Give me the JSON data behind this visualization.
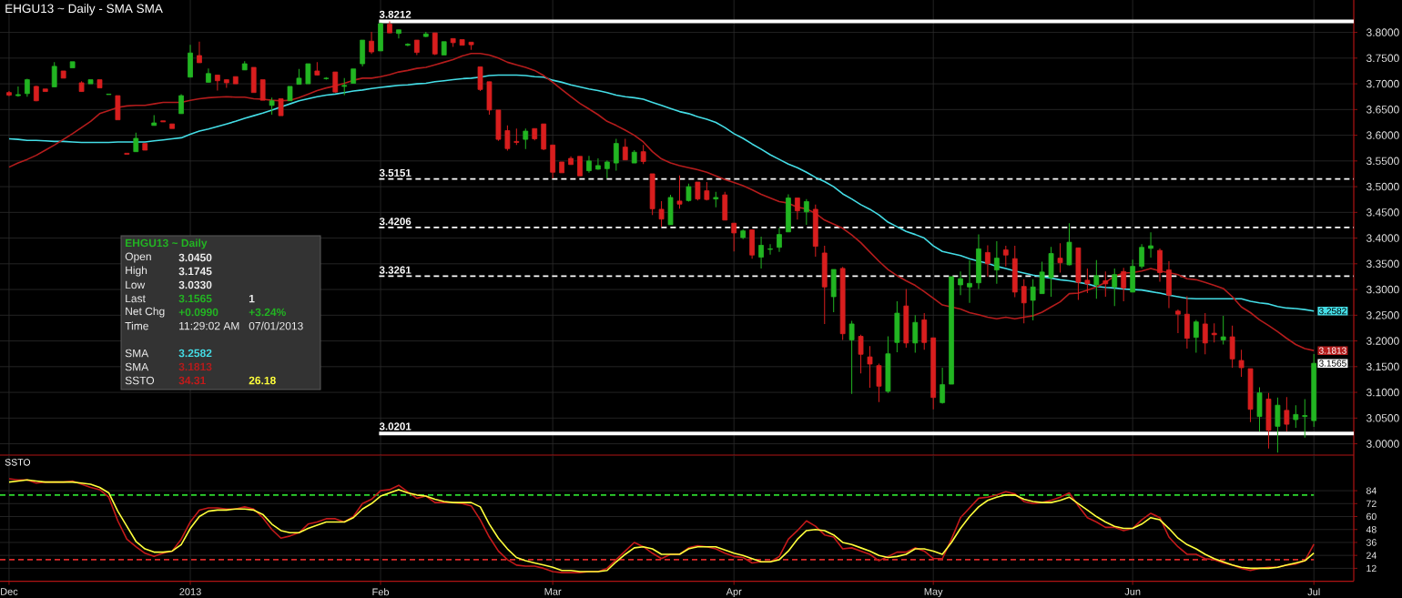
{
  "chart_data": [
    {
      "type": "candlestick",
      "title": "EHGU13 ~ Daily - SMA SMA",
      "categories": [
        null,
        null,
        null,
        null,
        null,
        null,
        null,
        null,
        null,
        null,
        null,
        null,
        null,
        null,
        null,
        null,
        null,
        null,
        null,
        null,
        null,
        null,
        null,
        null,
        null,
        null,
        null,
        null,
        null,
        null,
        null,
        null,
        null,
        null,
        null,
        null,
        null,
        null,
        null,
        null,
        null,
        null,
        null,
        null,
        null,
        null,
        null,
        null,
        null,
        null,
        null,
        null,
        null,
        null,
        null,
        null,
        null,
        null,
        null,
        null,
        null,
        null,
        null,
        null,
        null,
        null,
        null,
        null,
        null,
        null,
        null,
        null,
        null,
        null,
        null,
        null,
        null,
        null,
        null,
        null,
        null,
        null,
        null,
        null,
        null,
        null,
        null,
        null,
        null,
        null,
        null,
        null,
        null,
        null,
        null,
        null,
        null,
        null,
        null,
        null,
        null,
        null,
        null,
        null,
        null,
        null,
        null,
        null,
        null,
        null,
        null,
        null,
        null,
        null,
        null,
        null,
        null,
        null,
        null,
        null,
        null,
        null,
        null,
        null,
        null,
        null,
        null,
        null,
        null,
        null,
        null,
        null,
        null,
        null,
        null,
        null,
        null,
        null,
        null,
        null,
        null,
        null,
        null,
        null,
        null
      ],
      "ohlc": [
        [
          3.683,
          3.686,
          3.676,
          3.678
        ],
        [
          3.677,
          3.695,
          3.675,
          3.679
        ],
        [
          3.681,
          3.71,
          3.675,
          3.708
        ],
        [
          3.695,
          3.696,
          3.666,
          3.667
        ],
        [
          3.69,
          3.69,
          3.685,
          3.685
        ],
        [
          3.694,
          3.742,
          3.694,
          3.734
        ],
        [
          3.725,
          3.725,
          3.711,
          3.711
        ],
        [
          3.731,
          3.743,
          3.731,
          3.743
        ],
        [
          3.702,
          3.705,
          3.685,
          3.685
        ],
        [
          3.7,
          3.708,
          3.7,
          3.708
        ],
        [
          3.708,
          3.708,
          3.692,
          3.692
        ],
        [
          3.679,
          3.68,
          3.679,
          3.68
        ],
        [
          3.677,
          3.677,
          3.63,
          3.63
        ],
        [
          3.565,
          3.565,
          3.563,
          3.563
        ],
        [
          3.568,
          3.605,
          3.568,
          3.594
        ],
        [
          3.584,
          3.584,
          3.571,
          3.571
        ],
        [
          3.619,
          3.639,
          3.619,
          3.624
        ],
        [
          3.628,
          3.628,
          3.626,
          3.626
        ],
        [
          3.622,
          3.622,
          3.613,
          3.613
        ],
        [
          3.642,
          3.68,
          3.642,
          3.677
        ],
        [
          3.713,
          3.776,
          3.713,
          3.76
        ],
        [
          3.755,
          3.782,
          3.741,
          3.741
        ],
        [
          3.703,
          3.73,
          3.703,
          3.72
        ],
        [
          3.717,
          3.717,
          3.687,
          3.706
        ],
        [
          3.708,
          3.708,
          3.692,
          3.702
        ],
        [
          3.714,
          3.714,
          3.7,
          3.7
        ],
        [
          3.727,
          3.744,
          3.727,
          3.739
        ],
        [
          3.732,
          3.732,
          3.683,
          3.683
        ],
        [
          3.708,
          3.708,
          3.668,
          3.668
        ],
        [
          3.658,
          3.673,
          3.64,
          3.667
        ],
        [
          3.671,
          3.671,
          3.638,
          3.638
        ],
        [
          3.667,
          3.695,
          3.667,
          3.695
        ],
        [
          3.699,
          3.729,
          3.699,
          3.711
        ],
        [
          3.7,
          3.739,
          3.7,
          3.739
        ],
        [
          3.725,
          3.742,
          3.716,
          3.717
        ],
        [
          3.71,
          3.713,
          3.708,
          3.711
        ],
        [
          3.723,
          3.723,
          3.683,
          3.684
        ],
        [
          3.695,
          3.711,
          3.678,
          3.697
        ],
        [
          3.701,
          3.729,
          3.701,
          3.729
        ],
        [
          3.739,
          3.785,
          3.734,
          3.785
        ],
        [
          3.783,
          3.801,
          3.758,
          3.762
        ],
        [
          3.764,
          3.819,
          3.764,
          3.817
        ],
        [
          3.816,
          3.8212,
          3.799,
          3.799
        ],
        [
          3.798,
          3.805,
          3.788,
          3.805
        ],
        [
          3.775,
          3.779,
          3.773,
          3.777
        ],
        [
          3.785,
          3.785,
          3.756,
          3.761
        ],
        [
          3.792,
          3.801,
          3.791,
          3.797
        ],
        [
          3.799,
          3.799,
          3.756,
          3.758
        ],
        [
          3.756,
          3.782,
          3.756,
          3.782
        ],
        [
          3.788,
          3.788,
          3.772,
          3.78
        ],
        [
          3.786,
          3.786,
          3.775,
          3.775
        ],
        [
          3.781,
          3.781,
          3.766,
          3.776
        ],
        [
          3.733,
          3.733,
          3.686,
          3.689
        ],
        [
          3.704,
          3.704,
          3.64,
          3.649
        ],
        [
          3.649,
          3.649,
          3.589,
          3.592
        ],
        [
          3.609,
          3.619,
          3.57,
          3.574
        ],
        [
          3.588,
          3.613,
          3.581,
          3.586
        ],
        [
          3.592,
          3.613,
          3.573,
          3.608
        ],
        [
          3.613,
          3.613,
          3.59,
          3.593
        ],
        [
          3.622,
          3.622,
          3.571,
          3.573
        ],
        [
          3.581,
          3.581,
          3.516,
          3.528
        ],
        [
          3.548,
          3.548,
          3.527,
          3.527
        ],
        [
          3.555,
          3.559,
          3.543,
          3.543
        ],
        [
          3.559,
          3.559,
          3.521,
          3.521
        ],
        [
          3.531,
          3.56,
          3.527,
          3.55
        ],
        [
          3.534,
          3.555,
          3.533,
          3.541
        ],
        [
          3.535,
          3.551,
          3.516,
          3.548
        ],
        [
          3.546,
          3.593,
          3.531,
          3.584
        ],
        [
          3.577,
          3.593,
          3.552,
          3.552
        ],
        [
          3.546,
          3.571,
          3.546,
          3.567
        ],
        [
          3.568,
          3.581,
          3.544,
          3.549
        ],
        [
          3.525,
          3.525,
          3.445,
          3.457
        ],
        [
          3.456,
          3.472,
          3.422,
          3.437
        ],
        [
          3.426,
          3.484,
          3.426,
          3.479
        ],
        [
          3.472,
          3.522,
          3.457,
          3.466
        ],
        [
          3.473,
          3.506,
          3.471,
          3.5
        ],
        [
          3.509,
          3.509,
          3.473,
          3.476
        ],
        [
          3.492,
          3.509,
          3.473,
          3.475
        ],
        [
          3.476,
          3.49,
          3.46,
          3.479
        ],
        [
          3.484,
          3.49,
          3.435,
          3.435
        ],
        [
          3.429,
          3.429,
          3.374,
          3.41
        ],
        [
          3.401,
          3.417,
          3.398,
          3.414
        ],
        [
          3.416,
          3.417,
          3.36,
          3.367
        ],
        [
          3.363,
          3.403,
          3.341,
          3.386
        ],
        [
          3.378,
          3.388,
          3.368,
          3.379
        ],
        [
          3.382,
          3.42,
          3.373,
          3.407
        ],
        [
          3.412,
          3.485,
          3.412,
          3.478
        ],
        [
          3.478,
          3.478,
          3.436,
          3.453
        ],
        [
          3.451,
          3.476,
          3.426,
          3.471
        ],
        [
          3.456,
          3.465,
          3.364,
          3.384
        ],
        [
          3.371,
          3.385,
          3.233,
          3.305
        ],
        [
          3.286,
          3.339,
          3.256,
          3.339
        ],
        [
          3.341,
          3.344,
          3.202,
          3.214
        ],
        [
          3.202,
          3.239,
          3.097,
          3.233
        ],
        [
          3.209,
          3.212,
          3.137,
          3.174
        ],
        [
          3.169,
          3.19,
          3.109,
          3.155
        ],
        [
          3.152,
          3.156,
          3.081,
          3.112
        ],
        [
          3.102,
          3.209,
          3.099,
          3.175
        ],
        [
          3.197,
          3.277,
          3.178,
          3.254
        ],
        [
          3.268,
          3.301,
          3.187,
          3.196
        ],
        [
          3.196,
          3.25,
          3.177,
          3.236
        ],
        [
          3.241,
          3.254,
          3.183,
          3.197
        ],
        [
          3.206,
          3.206,
          3.067,
          3.09
        ],
        [
          3.08,
          3.148,
          3.078,
          3.115
        ],
        [
          3.116,
          3.325,
          3.116,
          3.325
        ],
        [
          3.309,
          3.335,
          3.289,
          3.321
        ],
        [
          3.305,
          3.357,
          3.274,
          3.312
        ],
        [
          3.313,
          3.407,
          3.301,
          3.379
        ],
        [
          3.372,
          3.386,
          3.325,
          3.35
        ],
        [
          3.338,
          3.394,
          3.311,
          3.361
        ],
        [
          3.377,
          3.385,
          3.345,
          3.367
        ],
        [
          3.36,
          3.385,
          3.285,
          3.295
        ],
        [
          3.306,
          3.32,
          3.234,
          3.274
        ],
        [
          3.279,
          3.32,
          3.24,
          3.305
        ],
        [
          3.292,
          3.354,
          3.292,
          3.334
        ],
        [
          3.323,
          3.383,
          3.286,
          3.37
        ],
        [
          3.361,
          3.39,
          3.333,
          3.352
        ],
        [
          3.348,
          3.429,
          3.347,
          3.392
        ],
        [
          3.381,
          3.381,
          3.28,
          3.314
        ],
        [
          3.318,
          3.341,
          3.293,
          3.311
        ],
        [
          3.309,
          3.357,
          3.282,
          3.327
        ],
        [
          3.317,
          3.335,
          3.286,
          3.311
        ],
        [
          3.305,
          3.341,
          3.268,
          3.329
        ],
        [
          3.335,
          3.342,
          3.277,
          3.303
        ],
        [
          3.295,
          3.358,
          3.295,
          3.345
        ],
        [
          3.345,
          3.388,
          3.341,
          3.382
        ],
        [
          3.38,
          3.411,
          3.362,
          3.385
        ],
        [
          3.376,
          3.38,
          3.315,
          3.333
        ],
        [
          3.338,
          3.355,
          3.264,
          3.289
        ],
        [
          3.258,
          3.261,
          3.215,
          3.252
        ],
        [
          3.252,
          3.287,
          3.185,
          3.205
        ],
        [
          3.207,
          3.241,
          3.177,
          3.237
        ],
        [
          3.233,
          3.254,
          3.174,
          3.196
        ],
        [
          3.215,
          3.234,
          3.197,
          3.212
        ],
        [
          3.202,
          3.249,
          3.193,
          3.208
        ],
        [
          3.208,
          3.23,
          3.148,
          3.165
        ],
        [
          3.162,
          3.183,
          3.13,
          3.148
        ],
        [
          3.146,
          3.146,
          3.042,
          3.067
        ],
        [
          3.053,
          3.11,
          3.024,
          3.099
        ],
        [
          3.087,
          3.099,
          2.991,
          3.026
        ],
        [
          3.034,
          3.09,
          2.983,
          3.075
        ],
        [
          3.065,
          3.091,
          3.024,
          3.038
        ],
        [
          3.047,
          3.075,
          3.031,
          3.057
        ],
        [
          3.053,
          3.087,
          3.012,
          3.055
        ],
        [
          3.045,
          3.1745,
          3.033,
          3.1565
        ]
      ],
      "colors": [
        "#d81e1e",
        "#22b522",
        "#22b522",
        "#d81e1e",
        "#d81e1e",
        "#22b522",
        "#d81e1e",
        "#22b522",
        "#d81e1e",
        "#22b522",
        "#d81e1e",
        "#22b522",
        "#d81e1e",
        "#d81e1e",
        "#22b522",
        "#d81e1e",
        "#22b522",
        "#d81e1e",
        "#d81e1e",
        "#22b522",
        "#22b522",
        "#d81e1e",
        "#22b522",
        "#d81e1e",
        "#d81e1e",
        "#d81e1e",
        "#22b522",
        "#d81e1e",
        "#d81e1e",
        "#22b522",
        "#d81e1e",
        "#22b522",
        "#22b522",
        "#22b522",
        "#d81e1e",
        "#22b522",
        "#d81e1e",
        "#22b522",
        "#22b522",
        "#22b522",
        "#d81e1e",
        "#22b522",
        "#d81e1e",
        "#22b522",
        "#22b522",
        "#d81e1e",
        "#22b522",
        "#d81e1e",
        "#22b522",
        "#d81e1e",
        "#d81e1e",
        "#d81e1e",
        "#d81e1e",
        "#d81e1e",
        "#d81e1e",
        "#d81e1e",
        "#d81e1e",
        "#22b522",
        "#d81e1e",
        "#d81e1e",
        "#d81e1e",
        "#d81e1e",
        "#d81e1e",
        "#d81e1e",
        "#22b522",
        "#22b522",
        "#22b522",
        "#22b522",
        "#d81e1e",
        "#22b522",
        "#d81e1e",
        "#d81e1e",
        "#d81e1e",
        "#22b522",
        "#d81e1e",
        "#22b522",
        "#d81e1e",
        "#d81e1e",
        "#22b522",
        "#d81e1e",
        "#d81e1e",
        "#22b522",
        "#d81e1e",
        "#22b522",
        "#22b522",
        "#22b522",
        "#22b522",
        "#d81e1e",
        "#22b522",
        "#d81e1e",
        "#d81e1e",
        "#22b522",
        "#d81e1e",
        "#22b522",
        "#d81e1e",
        "#d81e1e",
        "#d81e1e",
        "#22b522",
        "#22b522",
        "#d81e1e",
        "#22b522",
        "#d81e1e",
        "#d81e1e",
        "#22b522",
        "#22b522",
        "#22b522",
        "#22b522",
        "#22b522",
        "#d81e1e",
        "#22b522",
        "#d81e1e",
        "#d81e1e",
        "#d81e1e",
        "#22b522",
        "#22b522",
        "#22b522",
        "#d81e1e",
        "#22b522",
        "#d81e1e",
        "#d81e1e",
        "#22b522",
        "#d81e1e",
        "#22b522",
        "#d81e1e",
        "#22b522",
        "#22b522",
        "#22b522",
        "#d81e1e",
        "#d81e1e",
        "#d81e1e",
        "#d81e1e",
        "#22b522",
        "#d81e1e",
        "#d81e1e",
        "#22b522",
        "#d81e1e",
        "#d81e1e",
        "#d81e1e",
        "#22b522",
        "#d81e1e",
        "#22b522",
        "#d81e1e",
        "#22b522",
        "#22b522",
        "#22b522"
      ],
      "series": [
        {
          "type": "line",
          "color": "#44dde6",
          "values": [
            3.593,
            3.592,
            3.59,
            3.59,
            3.589,
            3.588,
            3.588,
            3.587,
            3.586,
            3.586,
            3.586,
            3.586,
            3.587,
            3.587,
            3.587,
            3.587,
            3.589,
            3.591,
            3.593,
            3.595,
            3.602,
            3.608,
            3.612,
            3.617,
            3.622,
            3.627,
            3.633,
            3.638,
            3.643,
            3.649,
            3.655,
            3.661,
            3.667,
            3.671,
            3.675,
            3.678,
            3.68,
            3.683,
            3.686,
            3.688,
            3.691,
            3.693,
            3.695,
            3.697,
            3.698,
            3.7,
            3.701,
            3.704,
            3.706,
            3.708,
            3.71,
            3.711,
            3.713,
            3.716,
            3.717,
            3.717,
            3.717,
            3.716,
            3.714,
            3.713,
            3.707,
            3.703,
            3.698,
            3.694,
            3.69,
            3.687,
            3.683,
            3.678,
            3.675,
            3.673,
            3.67,
            3.664,
            3.658,
            3.652,
            3.646,
            3.642,
            3.636,
            3.631,
            3.625,
            3.615,
            3.603,
            3.594,
            3.583,
            3.573,
            3.562,
            3.553,
            3.544,
            3.537,
            3.528,
            3.518,
            3.51,
            3.5,
            3.486,
            3.476,
            3.465,
            3.456,
            3.445,
            3.431,
            3.422,
            3.413,
            3.407,
            3.4,
            3.385,
            3.374,
            3.37,
            3.366,
            3.36,
            3.355,
            3.351,
            3.345,
            3.341,
            3.336,
            3.332,
            3.328,
            3.325,
            3.322,
            3.319,
            3.317,
            3.314,
            3.311,
            3.306,
            3.304,
            3.303,
            3.301,
            3.3,
            3.299,
            3.296,
            3.293,
            3.289,
            3.286,
            3.283,
            3.282,
            3.282,
            3.282,
            3.282,
            3.282,
            3.282,
            3.277,
            3.274,
            3.272,
            3.267,
            3.264,
            3.263,
            3.261,
            3.2582
          ]
        },
        {
          "type": "line",
          "color": "#b41c1c",
          "values": [
            3.538,
            3.546,
            3.553,
            3.561,
            3.571,
            3.581,
            3.592,
            3.603,
            3.615,
            3.627,
            3.642,
            3.648,
            3.654,
            3.657,
            3.658,
            3.658,
            3.661,
            3.664,
            3.664,
            3.664,
            3.668,
            3.671,
            3.673,
            3.674,
            3.675,
            3.674,
            3.674,
            3.671,
            3.67,
            3.668,
            3.667,
            3.668,
            3.673,
            3.68,
            3.687,
            3.692,
            3.696,
            3.701,
            3.707,
            3.711,
            3.711,
            3.714,
            3.718,
            3.723,
            3.726,
            3.73,
            3.732,
            3.737,
            3.742,
            3.747,
            3.754,
            3.759,
            3.759,
            3.756,
            3.75,
            3.742,
            3.737,
            3.732,
            3.726,
            3.716,
            3.703,
            3.689,
            3.675,
            3.662,
            3.651,
            3.64,
            3.627,
            3.619,
            3.61,
            3.6,
            3.587,
            3.568,
            3.554,
            3.546,
            3.541,
            3.537,
            3.533,
            3.528,
            3.521,
            3.514,
            3.508,
            3.502,
            3.494,
            3.485,
            3.478,
            3.471,
            3.468,
            3.46,
            3.457,
            3.448,
            3.435,
            3.427,
            3.419,
            3.406,
            3.391,
            3.373,
            3.355,
            3.339,
            3.327,
            3.317,
            3.308,
            3.296,
            3.283,
            3.27,
            3.266,
            3.262,
            3.255,
            3.251,
            3.246,
            3.243,
            3.246,
            3.243,
            3.246,
            3.249,
            3.256,
            3.266,
            3.276,
            3.292,
            3.293,
            3.299,
            3.305,
            3.314,
            3.326,
            3.332,
            3.333,
            3.336,
            3.341,
            3.336,
            3.333,
            3.329,
            3.321,
            3.319,
            3.314,
            3.308,
            3.302,
            3.286,
            3.266,
            3.255,
            3.241,
            3.23,
            3.218,
            3.205,
            3.193,
            3.185,
            3.1813
          ]
        }
      ],
      "ylim": [
        2.978,
        3.863
      ],
      "yticks": [
        {
          "value": 3.0,
          "label": "3.0000"
        },
        {
          "value": 3.05,
          "label": "3.0500"
        },
        {
          "value": 3.1,
          "label": "3.1000"
        },
        {
          "value": 3.15,
          "label": "3.1500"
        },
        {
          "value": 3.2,
          "label": "3.2000"
        },
        {
          "value": 3.25,
          "label": "3.2500"
        },
        {
          "value": 3.3,
          "label": "3.3000"
        },
        {
          "value": 3.35,
          "label": "3.3500"
        },
        {
          "value": 3.4,
          "label": "3.4000"
        },
        {
          "value": 3.45,
          "label": "3.4500"
        },
        {
          "value": 3.5,
          "label": "3.5000"
        },
        {
          "value": 3.55,
          "label": "3.5500"
        },
        {
          "value": 3.6,
          "label": "3.6000"
        },
        {
          "value": 3.65,
          "label": "3.6500"
        },
        {
          "value": 3.7,
          "label": "3.7000"
        },
        {
          "value": 3.75,
          "label": "3.7500"
        },
        {
          "value": 3.8,
          "label": "3.8000"
        }
      ],
      "grid": true,
      "ref_lines": [
        {
          "axis": "y",
          "value": 3.8212,
          "label": "3.8212",
          "color": "#ffffff",
          "line_style": "solid"
        },
        {
          "axis": "y",
          "value": 3.5151,
          "label": "3.5151",
          "color": "#ffffff",
          "line_style": "dashed"
        },
        {
          "axis": "y",
          "value": 3.4206,
          "label": "3.4206",
          "color": "#ffffff",
          "line_style": "dashed"
        },
        {
          "axis": "y",
          "value": 3.3261,
          "label": "3.3261",
          "color": "#ffffff",
          "line_style": "dashed"
        },
        {
          "axis": "y",
          "value": 3.0201,
          "label": "3.0201",
          "color": "#ffffff",
          "line_style": "solid"
        }
      ],
      "annotations": [
        "EHGU13 ~ Daily",
        "Open",
        "3.0450",
        "High",
        "3.1745",
        "Low",
        "3.0330",
        "Last",
        "3.1565",
        "1",
        "Net Chg",
        "+0.0990",
        "+3.24%",
        "Time",
        "11:29:02 AM",
        "07/01/2013",
        "SMA",
        "3.2582",
        "SMA",
        "3.1813",
        "SSTO",
        "34.31",
        "26.18",
        "3.2582",
        "3.1813",
        "3.1565"
      ]
    },
    {
      "type": "line",
      "title": "SSTO",
      "categories": [
        "Dec",
        null,
        null,
        null,
        null,
        null,
        null,
        null,
        null,
        null,
        null,
        null,
        null,
        null,
        null,
        null,
        null,
        null,
        null,
        null,
        "2013",
        null,
        null,
        null,
        null,
        null,
        null,
        null,
        null,
        null,
        null,
        null,
        null,
        null,
        null,
        null,
        null,
        null,
        null,
        null,
        null,
        "Feb",
        null,
        null,
        null,
        null,
        null,
        null,
        null,
        null,
        null,
        null,
        null,
        null,
        null,
        null,
        null,
        null,
        null,
        null,
        "Mar",
        null,
        null,
        null,
        null,
        null,
        null,
        null,
        null,
        null,
        null,
        null,
        null,
        null,
        null,
        null,
        null,
        null,
        null,
        null,
        "Apr",
        null,
        null,
        null,
        null,
        null,
        null,
        null,
        null,
        null,
        null,
        null,
        null,
        null,
        null,
        null,
        null,
        null,
        null,
        null,
        null,
        null,
        "May",
        null,
        null,
        null,
        null,
        null,
        null,
        null,
        null,
        null,
        null,
        null,
        null,
        null,
        null,
        null,
        null,
        null,
        null,
        null,
        null,
        null,
        "Jun",
        null,
        null,
        null,
        null,
        null,
        null,
        null,
        null,
        null,
        null,
        null,
        null,
        null,
        null,
        null,
        null,
        null,
        null,
        null,
        "Jul"
      ],
      "series": [
        {
          "color": "#c41a1a",
          "values": [
            95,
            94,
            94,
            91,
            92,
            92,
            92,
            93,
            90,
            87,
            85,
            78,
            56,
            39,
            32,
            26,
            23,
            26,
            28,
            39,
            55,
            66,
            68,
            68,
            67,
            67,
            69,
            67,
            59,
            48,
            40,
            42,
            45,
            53,
            55,
            58,
            58,
            55,
            60,
            72,
            76,
            84,
            85,
            89,
            83,
            77,
            79,
            73,
            73,
            73,
            72,
            70,
            57,
            41,
            28,
            20,
            15,
            14,
            14,
            12,
            9,
            8,
            8,
            8,
            9,
            9,
            12,
            20,
            28,
            36,
            32,
            26,
            21,
            25,
            25,
            31,
            33,
            32,
            30,
            26,
            23,
            22,
            17,
            18,
            18,
            23,
            39,
            47,
            56,
            51,
            43,
            41,
            30,
            31,
            28,
            25,
            19,
            23,
            27,
            27,
            31,
            28,
            21,
            21,
            39,
            59,
            68,
            77,
            78,
            80,
            83,
            81,
            74,
            72,
            73,
            75,
            78,
            82,
            70,
            59,
            55,
            50,
            50,
            47,
            49,
            57,
            63,
            59,
            41,
            32,
            25,
            25,
            21,
            20,
            17,
            15,
            12,
            10,
            12,
            13,
            13,
            15,
            16,
            19,
            34.31
          ]
        },
        {
          "color": "#ffff3c",
          "values": [
            92,
            93,
            94,
            93,
            92,
            92,
            92,
            92,
            91,
            90,
            87,
            82,
            65,
            51,
            37,
            30,
            27,
            27,
            28,
            34,
            49,
            60,
            65,
            66,
            66,
            67,
            67,
            66,
            62,
            53,
            47,
            45,
            45,
            49,
            52,
            55,
            55,
            55,
            59,
            67,
            72,
            79,
            82,
            85,
            82,
            80,
            79,
            76,
            74,
            73,
            73,
            73,
            69,
            53,
            40,
            30,
            22,
            19,
            17,
            15,
            13,
            10,
            10,
            9,
            9,
            9,
            10,
            18,
            25,
            31,
            32,
            30,
            25,
            25,
            25,
            30,
            32,
            32,
            32,
            29,
            26,
            24,
            21,
            18,
            18,
            20,
            28,
            39,
            47,
            48,
            47,
            43,
            36,
            34,
            31,
            28,
            24,
            22,
            23,
            25,
            30,
            30,
            28,
            25,
            36,
            49,
            60,
            69,
            75,
            78,
            80,
            80,
            76,
            74,
            73,
            73,
            75,
            78,
            72,
            66,
            60,
            55,
            51,
            49,
            49,
            53,
            59,
            57,
            49,
            40,
            34,
            30,
            25,
            21,
            18,
            15,
            13,
            12,
            12,
            12,
            13,
            15,
            17,
            19,
            26.18
          ]
        }
      ],
      "ylim": [
        0,
        117
      ],
      "yticks": [
        12,
        24,
        36,
        48,
        60,
        72,
        84
      ],
      "grid": true,
      "ref_lines": [
        {
          "axis": "y",
          "value": 80,
          "color": "#2ed82e",
          "line_style": "dashed"
        },
        {
          "axis": "y",
          "value": 20,
          "color": "#d82a2a",
          "line_style": "dashed"
        }
      ]
    }
  ]
}
